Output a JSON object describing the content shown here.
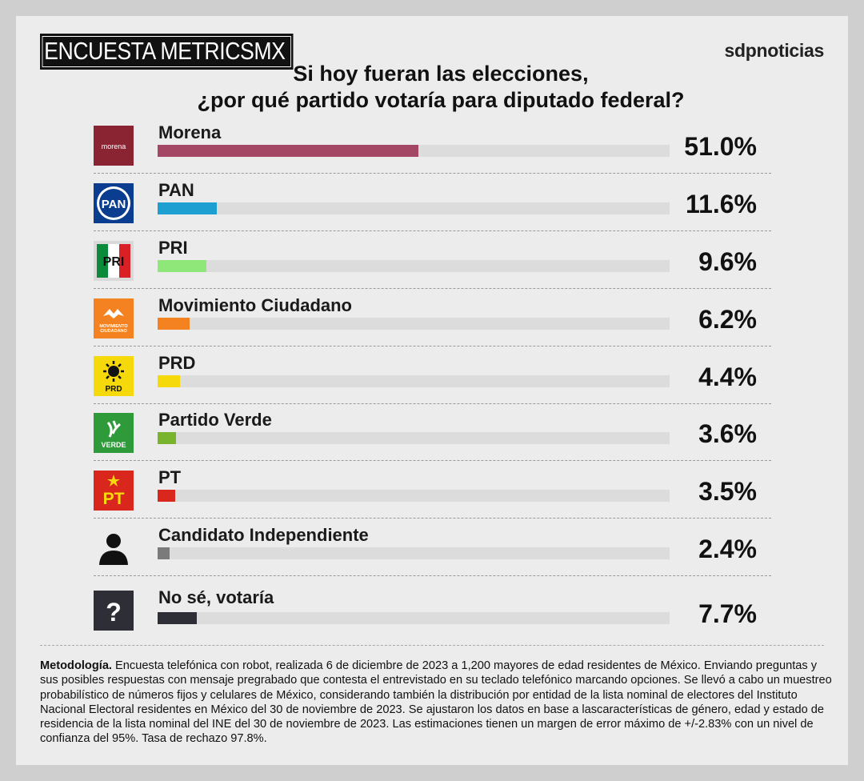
{
  "header": {
    "survey_title": "ENCUESTA METRICSMX",
    "brand": "sdpnoticias",
    "question_line1": "Si hoy fueran las elecciones,",
    "question_line2": "¿por qué partido votaría para diputado federal?"
  },
  "chart_data": {
    "type": "bar",
    "orientation": "horizontal",
    "title": "Si hoy fueran las elecciones, ¿por qué partido votaría para diputado federal?",
    "categories": [
      "Morena",
      "PAN",
      "PRI",
      "Movimiento Ciudadano",
      "PRD",
      "Partido Verde",
      "PT",
      "Candidato Independiente",
      "No sé, votaría"
    ],
    "values": [
      51.0,
      11.6,
      9.6,
      6.2,
      4.4,
      3.6,
      3.5,
      2.4,
      7.7
    ],
    "value_labels": [
      "51.0%",
      "11.6%",
      "9.6%",
      "6.2%",
      "4.4%",
      "3.6%",
      "3.5%",
      "2.4%",
      "7.7%"
    ],
    "colors": [
      "#a34764",
      "#1d9fd2",
      "#8fe77a",
      "#f58220",
      "#f5d90a",
      "#7ab32e",
      "#d9271e",
      "#7b7b7b",
      "#2e2e36"
    ],
    "logos": [
      "morena-logo",
      "pan-logo",
      "pri-logo",
      "mc-logo",
      "prd-logo",
      "verde-logo",
      "pt-logo",
      "person-icon",
      "question-icon"
    ],
    "xlim": [
      0,
      100
    ],
    "unit": "%"
  },
  "logo_text": {
    "morena": "morena",
    "pan": "PAN",
    "pri": "PRI",
    "mc_line1": "MOVIMIENTO",
    "mc_line2": "CIUDADANO",
    "prd": "PRD",
    "verde": "VERDE",
    "pt": "PT",
    "question": "?"
  },
  "methodology": {
    "label": "Metodología.",
    "text": " Encuesta telefónica con robot, realizada 6 de diciembre de 2023 a 1,200 mayores de edad residentes de México. Enviando preguntas y sus posibles respuestas con mensaje pregrabado que contesta el entrevistado en su teclado telefónico marcando opciones. Se llevó a cabo un muestreo probabilístico de números fijos y celulares de México, considerando también la distribución por entidad de la lista nominal de electores del Instituto Nacional Electoral residentes en México del 30 de noviembre de 2023. Se ajustaron los datos en base a lascaracterísticas de género, edad y estado de residencia de la lista nominal del INE del 30 de noviembre de 2023. Las estimaciones tienen un margen de error máximo de +/-2.83% con un nivel de confianza del 95%. Tasa de rechazo 97.8%."
  }
}
